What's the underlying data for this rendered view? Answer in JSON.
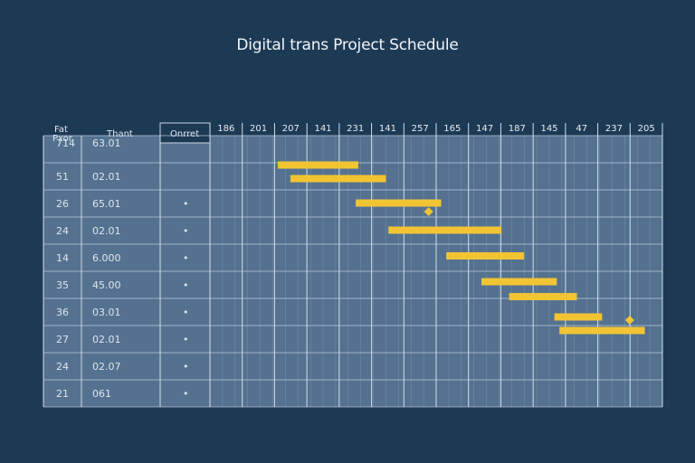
{
  "title": "Digital trans Project Schedule",
  "colors": {
    "background": "#1d3a55",
    "grid_fill": "#5c7a99",
    "bar": "#f2c434",
    "milestone": "#f2c434"
  },
  "columns": {
    "col1_header_lines": [
      "Fat",
      "Pxor"
    ],
    "col2_header": "Thant",
    "col3_header": "Onrret"
  },
  "chart_data": {
    "type": "table",
    "timeline_ticks": [
      "186",
      "201",
      "207",
      "141",
      "231",
      "141",
      "257",
      "165",
      "147",
      "187",
      "145",
      "47",
      "237",
      "205"
    ],
    "rows": [
      {
        "id": "714",
        "date": "63.01",
        "mark": ""
      },
      {
        "id": "51",
        "date": "02.01",
        "mark": ""
      },
      {
        "id": "26",
        "date": "65.01",
        "mark": "•"
      },
      {
        "id": "24",
        "date": "02.01",
        "mark": "•"
      },
      {
        "id": "14",
        "date": "6.000",
        "mark": "•"
      },
      {
        "id": "35",
        "date": "45.00",
        "mark": "•"
      },
      {
        "id": "36",
        "date": "03.01",
        "mark": "•"
      },
      {
        "id": "27",
        "date": "02.01",
        "mark": "•"
      },
      {
        "id": "24",
        "date": "02.07",
        "mark": "•"
      },
      {
        "id": "21",
        "date": "061",
        "mark": "•"
      }
    ],
    "bars": [
      {
        "start": 2.7,
        "end": 5.9
      },
      {
        "start": 3.2,
        "end": 7.0
      },
      {
        "start": 5.8,
        "end": 9.2
      },
      {
        "start": 7.1,
        "end": 11.6
      },
      {
        "start": 9.4,
        "end": 12.5
      },
      {
        "start": 10.8,
        "end": 13.8
      },
      {
        "start": 11.9,
        "end": 14.6
      },
      {
        "start": 13.7,
        "end": 15.6
      },
      {
        "start": 13.9,
        "end": 17.3
      }
    ],
    "milestones": [
      {
        "at": 8.7,
        "row": 2.8
      },
      {
        "at": 16.7,
        "row": 6.8
      }
    ]
  }
}
